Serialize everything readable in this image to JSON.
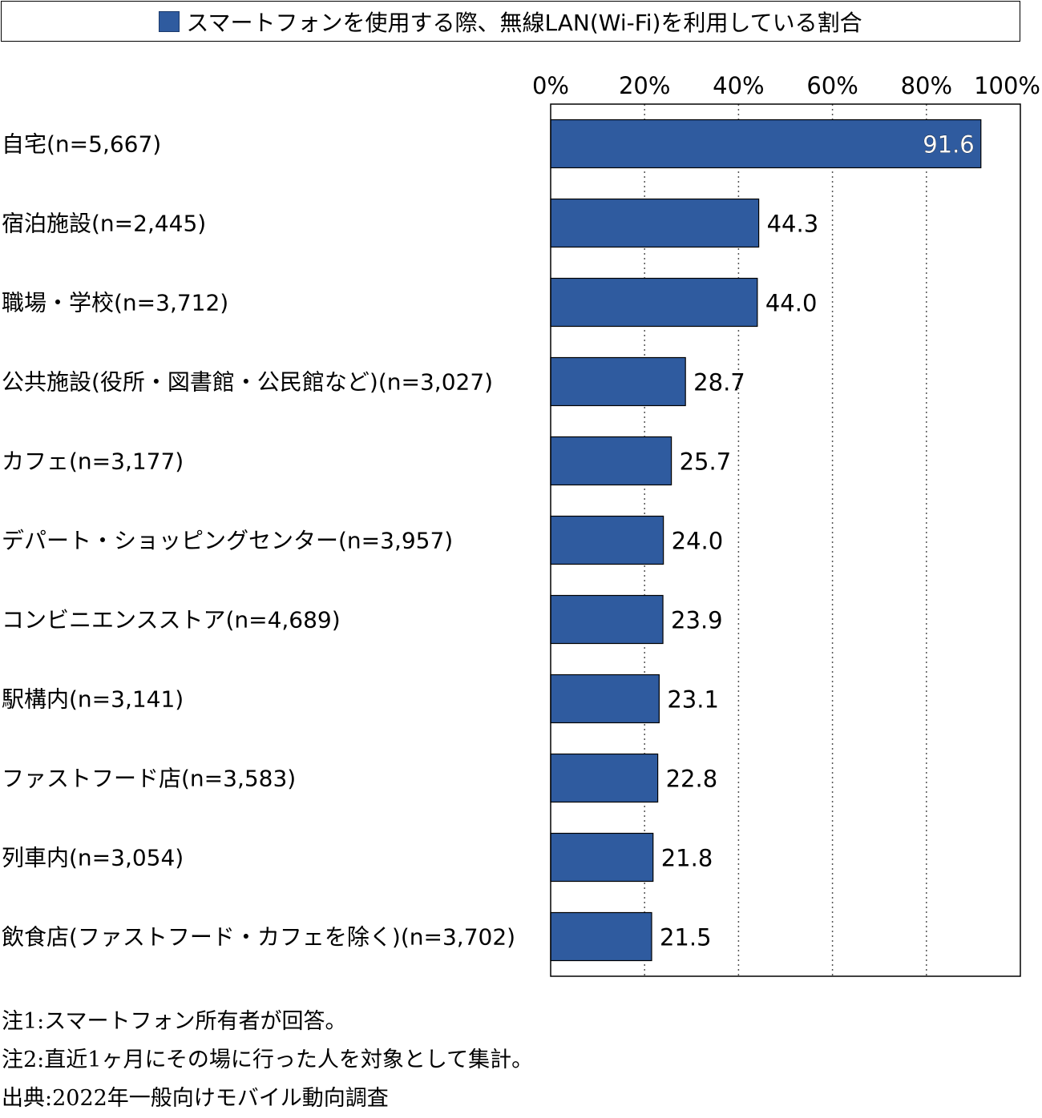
{
  "legend": {
    "label": "スマートフォンを使用する際、無線LAN(Wi-Fi)を利用している割合",
    "color": "#2f5b9f"
  },
  "chart_data": {
    "type": "bar",
    "orientation": "horizontal",
    "xlim": [
      0,
      100
    ],
    "x_ticks": [
      "0%",
      "20%",
      "40%",
      "60%",
      "80%",
      "100%"
    ],
    "grid": "vertical dotted",
    "categories": [
      "自宅(n=5,667)",
      "宿泊施設(n=2,445)",
      "職場・学校(n=3,712)",
      "公共施設(役所・図書館・公民館など)(n=3,027)",
      "カフェ(n=3,177)",
      "デパート・ショッピングセンター(n=3,957)",
      "コンビニエンスストア(n=4,689)",
      "駅構内(n=3,141)",
      "ファストフード店(n=3,583)",
      "列車内(n=3,054)",
      "飲食店(ファストフード・カフェを除く)(n=3,702)"
    ],
    "values": [
      91.6,
      44.3,
      44.0,
      28.7,
      25.7,
      24.0,
      23.9,
      23.1,
      22.8,
      21.8,
      21.5
    ],
    "value_labels": [
      "91.6",
      "44.3",
      "44.0",
      "28.7",
      "25.7",
      "24.0",
      "23.9",
      "23.1",
      "22.8",
      "21.8",
      "21.5"
    ],
    "bar_color": "#2f5b9f"
  },
  "notes": [
    "注1:スマートフォン所有者が回答。",
    "注2:直近1ヶ月にその場に行った人を対象として集計。",
    "出典:2022年一般向けモバイル動向調査"
  ]
}
